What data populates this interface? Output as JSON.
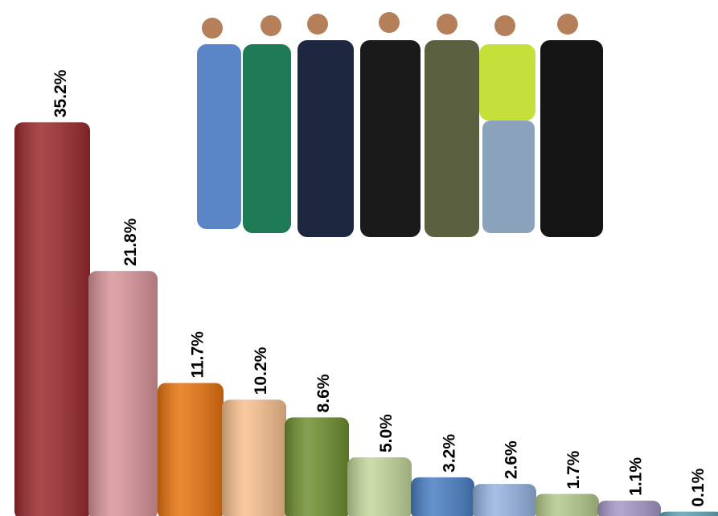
{
  "chart_data": {
    "type": "bar",
    "values": [
      35.2,
      21.8,
      11.7,
      10.2,
      8.6,
      5.0,
      3.2,
      2.6,
      1.7,
      1.1,
      0.1
    ],
    "value_labels": [
      "35.2%",
      "21.8%",
      "11.7%",
      "10.2%",
      "8.6%",
      "5.0%",
      "3.2%",
      "2.6%",
      "1.7%",
      "1.1%",
      "0.1%"
    ],
    "colors": [
      "#9b2a2e",
      "#d9959a",
      "#e8740f",
      "#f8c08f",
      "#6f8f30",
      "#c3d69b",
      "#4a7fc4",
      "#95b3e0",
      "#b3c98a",
      "#a697c6",
      "#5ba3b5"
    ]
  }
}
